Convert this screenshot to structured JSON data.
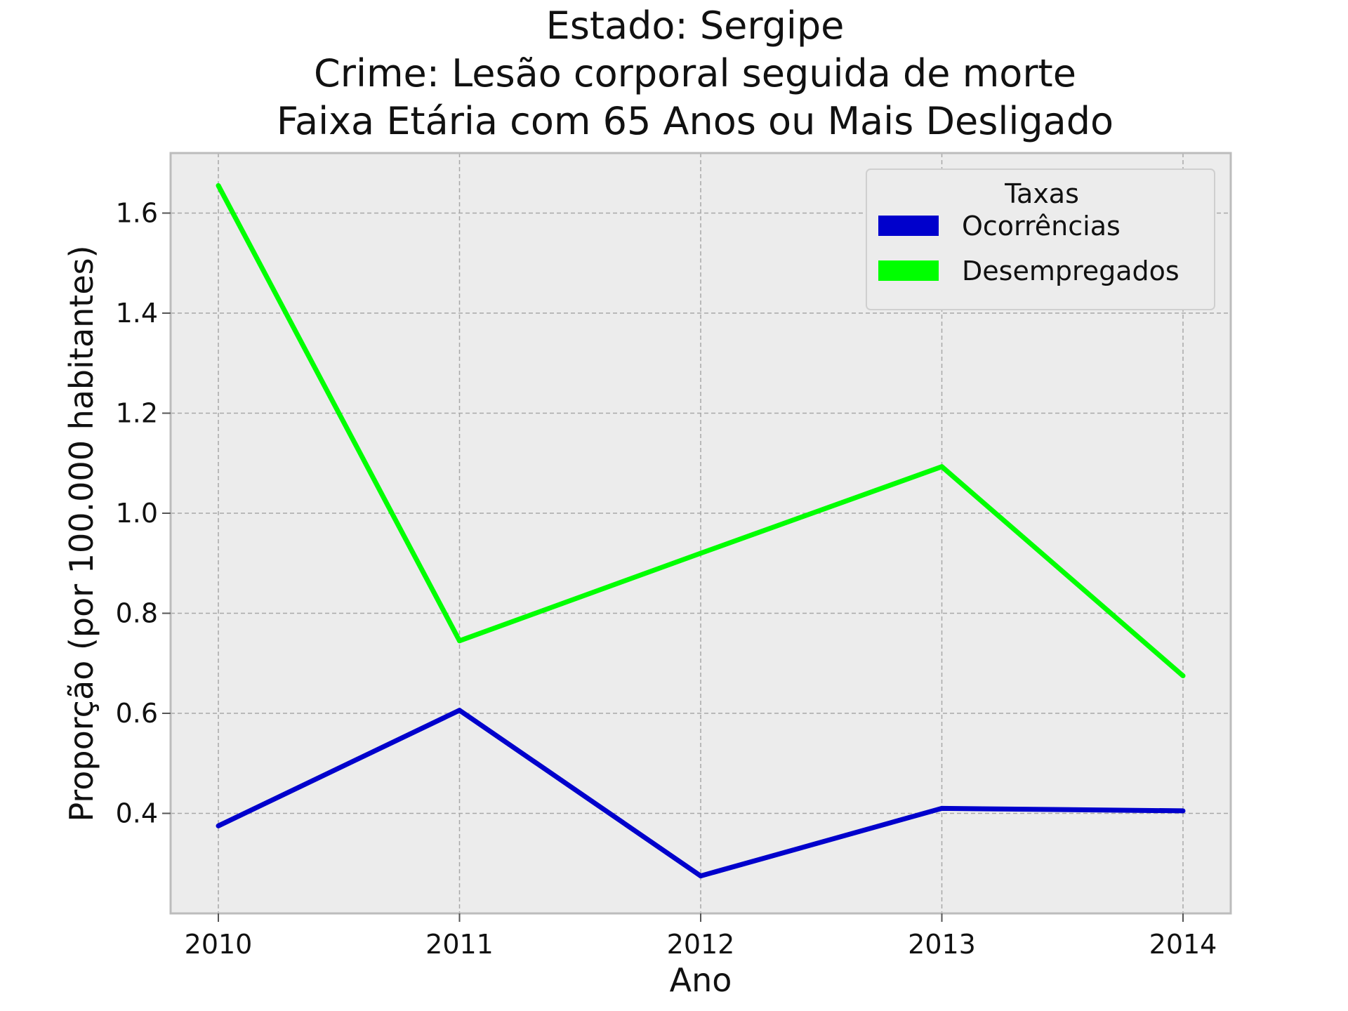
{
  "chart_data": {
    "type": "line",
    "title_lines": [
      "Estado: Sergipe",
      "Crime: Lesão corporal seguida de morte",
      "Faixa Etária com 65 Anos ou Mais   Desligado"
    ],
    "xlabel": "Ano",
    "ylabel": "Proporção (por 100.000 habitantes)",
    "x": [
      "2010",
      "2011",
      "2012",
      "2013",
      "2014"
    ],
    "yticks": [
      "0.4",
      "0.6",
      "0.8",
      "1.0",
      "1.2",
      "1.4",
      "1.6"
    ],
    "ylim": [
      0.2,
      1.72
    ],
    "grid": true,
    "legend": {
      "title": "Taxas",
      "placement": "top-right"
    },
    "series": [
      {
        "name": "Ocorrências",
        "color": "#0000cc",
        "values": [
          0.375,
          0.606,
          0.275,
          0.41,
          0.405
        ]
      },
      {
        "name": "Desempregados",
        "color": "#00ff00",
        "values": [
          1.655,
          0.745,
          0.92,
          1.093,
          0.675
        ]
      }
    ],
    "plot_background": "#ececec",
    "frame_color": "#bcbcbc"
  }
}
